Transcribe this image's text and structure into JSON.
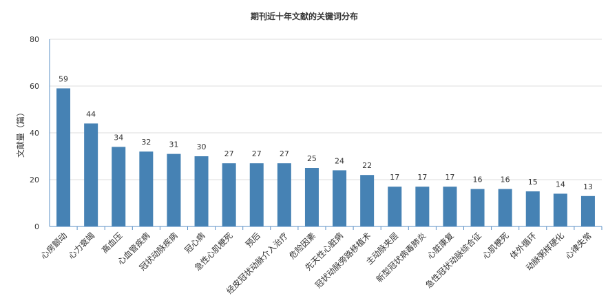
{
  "chart_data": {
    "type": "bar",
    "title": "期刊近十年文献的关键词分布",
    "xlabel": "",
    "ylabel": "文献量（篇）",
    "ylim": [
      0,
      80
    ],
    "yticks": [
      0,
      20,
      40,
      60,
      80
    ],
    "grid": true,
    "bar_color": "#4682B4",
    "categories": [
      "心房颤动",
      "心力衰竭",
      "高血压",
      "心血管疾病",
      "冠状动脉疾病",
      "冠心病",
      "急性心肌梗死",
      "预后",
      "经皮冠状动脉介入治疗",
      "危险因素",
      "先天性心脏病",
      "冠状动脉旁路移植术",
      "主动脉夹层",
      "新型冠状病毒肺炎",
      "心脏康复",
      "急性冠状动脉综合征",
      "心肌梗死",
      "体外循环",
      "动脉粥样硬化",
      "心律失常"
    ],
    "values": [
      59,
      44,
      34,
      32,
      31,
      30,
      27,
      27,
      27,
      25,
      24,
      22,
      17,
      17,
      17,
      16,
      16,
      15,
      14,
      13
    ]
  }
}
